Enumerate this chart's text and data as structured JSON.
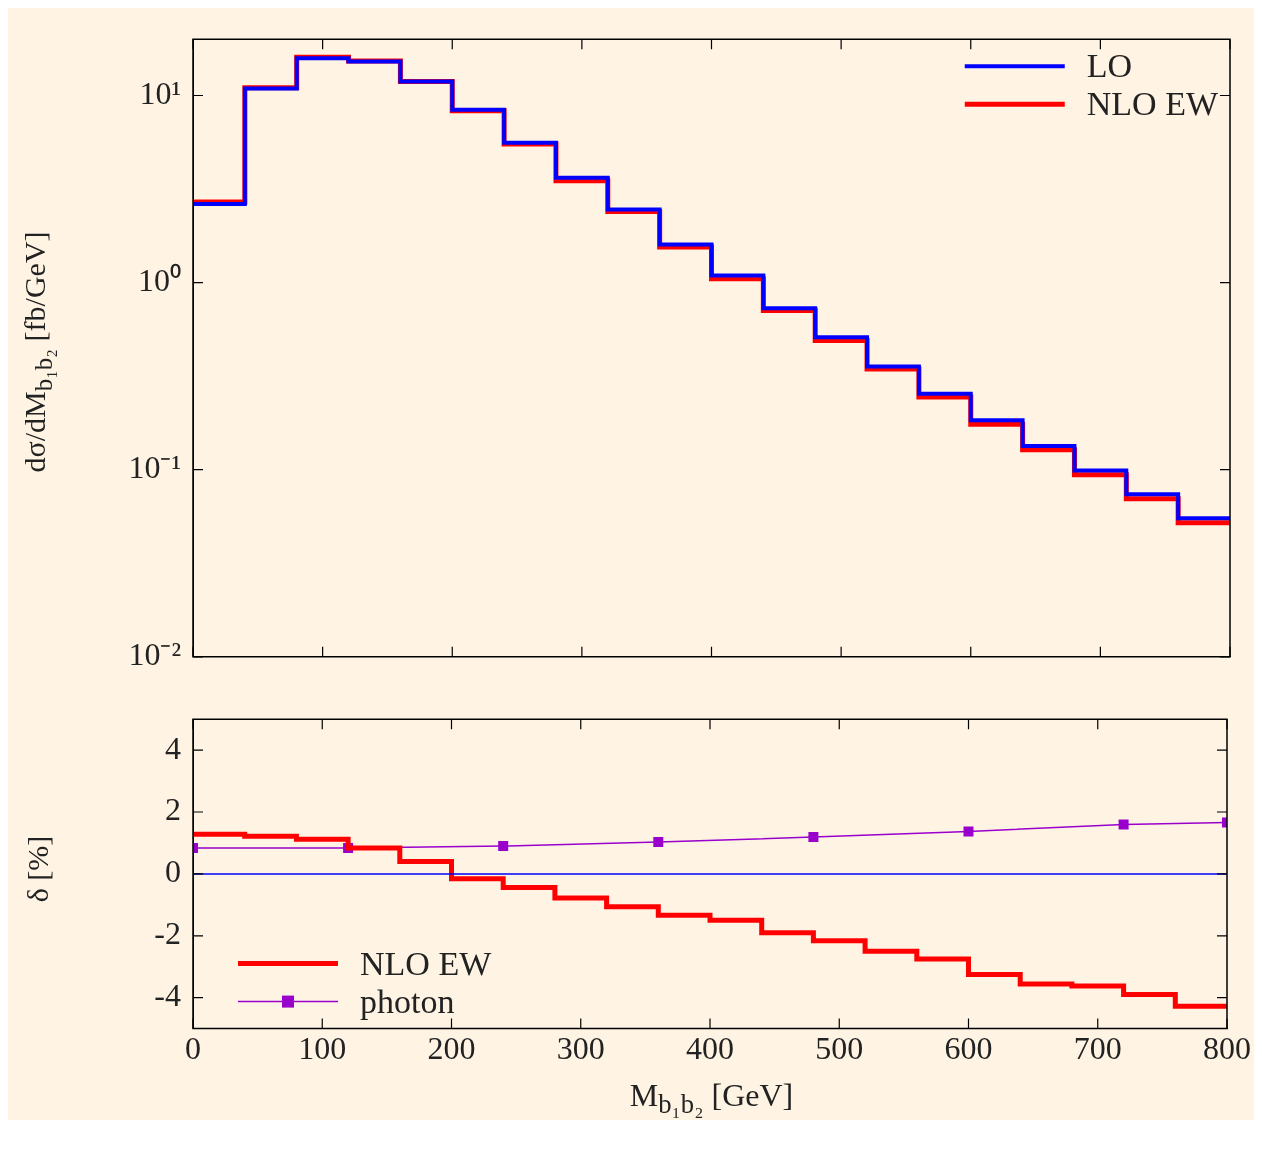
{
  "chart_data": [
    {
      "type": "histogram",
      "bins": [
        0,
        40,
        80,
        120,
        160,
        200,
        240,
        280,
        320,
        360,
        400,
        440,
        480,
        520,
        560,
        600,
        640,
        680,
        720,
        760,
        800
      ],
      "series": [
        {
          "name": "LO",
          "color": "#0000ff",
          "values": [
            2.63,
            10.9,
            15.8,
            15.2,
            11.9,
            8.4,
            5.6,
            3.63,
            2.46,
            1.6,
            1.09,
            0.73,
            0.51,
            0.356,
            0.255,
            0.184,
            0.134,
            0.099,
            0.074,
            0.055
          ]
        },
        {
          "name": "NLO EW",
          "color": "#ff0000",
          "values": [
            2.7,
            11.0,
            16.0,
            15.3,
            11.9,
            8.3,
            5.5,
            3.5,
            2.4,
            1.55,
            1.05,
            0.71,
            0.49,
            0.345,
            0.245,
            0.175,
            0.128,
            0.094,
            0.07,
            0.052
          ]
        }
      ],
      "log": "y",
      "ylim": [
        0.01,
        20
      ],
      "yticks": [
        {
          "value": 0.01,
          "label": "10⁻²"
        },
        {
          "value": 0.1,
          "label": "10⁻¹"
        },
        {
          "value": 1,
          "label": "10⁰"
        },
        {
          "value": 10,
          "label": "10¹"
        }
      ],
      "xlim": [
        0,
        800
      ],
      "xticks": [
        0,
        100,
        200,
        300,
        400,
        500,
        600,
        700,
        800
      ],
      "tick_labels": "y",
      "ylabel": "dσ/dM$_{b₁b₂}$ [fb/GeV]",
      "legend": "top right"
    },
    {
      "type": "histogram",
      "bins": [
        0,
        40,
        80,
        120,
        160,
        200,
        240,
        280,
        320,
        360,
        400,
        440,
        480,
        520,
        560,
        600,
        640,
        680,
        720,
        760,
        800
      ],
      "series": [
        {
          "name": "NLO EW",
          "color": "#ff0000",
          "values": [
            1.28,
            1.22,
            1.12,
            0.84,
            0.4,
            -0.16,
            -0.44,
            -0.78,
            -1.06,
            -1.34,
            -1.5,
            -1.9,
            -2.16,
            -2.5,
            -2.75,
            -3.25,
            -3.56,
            -3.62,
            -3.9,
            -4.28
          ]
        },
        {
          "name": "photon",
          "type": "line",
          "marker": "square",
          "color": "#9900cc",
          "x": [
            0,
            120,
            240,
            360,
            480,
            600,
            720,
            800
          ],
          "values": [
            0.84,
            0.84,
            0.9,
            1.03,
            1.19,
            1.37,
            1.6,
            1.66
          ]
        }
      ],
      "ref_lines": [
        {
          "axis": "y",
          "value": 0,
          "color": "#0000ff"
        }
      ],
      "ylim": [
        -5,
        5
      ],
      "yticks": [
        -4,
        -2,
        0,
        2,
        4
      ],
      "xlim": [
        0,
        800
      ],
      "xticks": [
        0,
        100,
        200,
        300,
        400,
        500,
        600,
        700,
        800
      ],
      "xlabel": "M$_{b₁b₂}$ [GeV]",
      "ylabel": "δ [%]",
      "legend": "bottom left"
    }
  ]
}
